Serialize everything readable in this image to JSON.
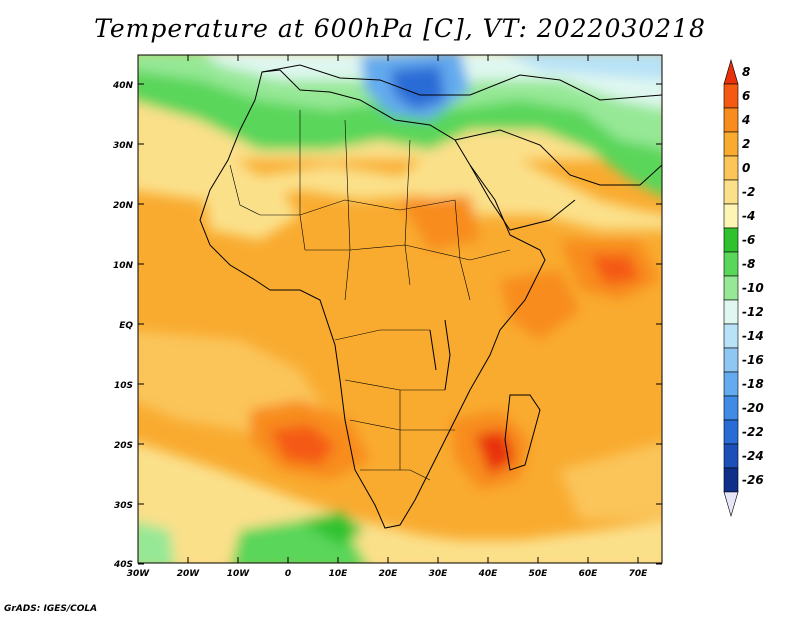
{
  "title": "Temperature at 600hPa [C], VT: 2022030218",
  "footer": "GrADS: IGES/COLA",
  "map": {
    "lat_labels": [
      "40N",
      "30N",
      "20N",
      "10N",
      "EQ",
      "10S",
      "20S",
      "30S",
      "40S"
    ],
    "lon_labels": [
      "30W",
      "20W",
      "10W",
      "0",
      "10E",
      "20E",
      "30E",
      "40E",
      "50E",
      "60E",
      "70E"
    ]
  },
  "colorbar": {
    "labels": [
      "8",
      "6",
      "4",
      "2",
      "0",
      "-2",
      "-4",
      "-6",
      "-8",
      "-10",
      "-12",
      "-14",
      "-16",
      "-18",
      "-20",
      "-22",
      "-24",
      "-26"
    ],
    "colors": [
      "#e8300a",
      "#f45a12",
      "#f88c1e",
      "#f9ab30",
      "#fbc55a",
      "#fbe08a",
      "#fdf5b4",
      "#2ec22e",
      "#5ad65a",
      "#96e896",
      "#dff7f0",
      "#b7e2f7",
      "#8ec8f2",
      "#64aaee",
      "#3f8be6",
      "#2a6cd6",
      "#1c4fb8",
      "#0f2f8a",
      "#070f50"
    ]
  }
}
